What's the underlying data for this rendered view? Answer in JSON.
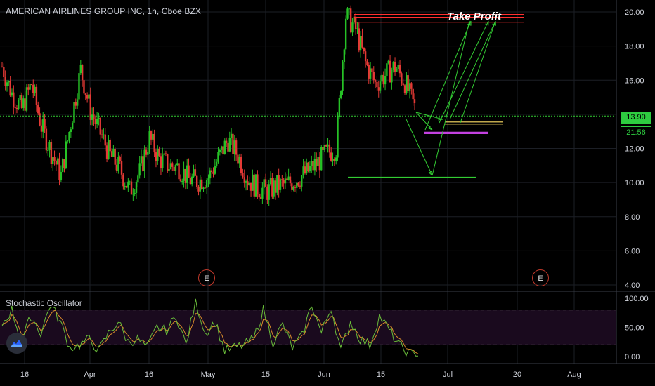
{
  "header": {
    "title": "AMERICAN AIRLINES GROUP INC, 1h, Cboe BZX"
  },
  "annotations": {
    "take_profit": "Take Profit",
    "earnings_label": "E"
  },
  "price_tags": {
    "last_price": "13.90",
    "countdown": "21:56"
  },
  "oscillator": {
    "name": "Stochastic Oscillator"
  },
  "chart_data": [
    {
      "type": "candlestick",
      "title": "AMERICAN AIRLINES GROUP INC, 1h, Cboe BZX",
      "ylim": [
        3.8,
        20.6
      ],
      "y_ticks": [
        "20.00",
        "18.00",
        "16.00",
        "14.00",
        "12.00",
        "10.00",
        "8.00",
        "6.00",
        "4.00"
      ],
      "x_ticks": [
        "16",
        "Apr",
        "16",
        "May",
        "15",
        "Jun",
        "15",
        "Jul",
        "20",
        "Aug"
      ],
      "last_price": 13.9,
      "grid": true,
      "approx_closes": [
        16.8,
        15.2,
        14.3,
        15.8,
        13.3,
        11.8,
        10.4,
        13.5,
        16.6,
        14.2,
        12.9,
        11.6,
        10.8,
        9.5,
        10.6,
        12.6,
        11.4,
        11.0,
        10.9,
        10.2,
        10.1,
        10.3,
        11.4,
        12.5,
        11.6,
        10.2,
        9.7,
        9.5,
        9.8,
        9.9,
        10.2,
        10.6,
        11.1,
        11.7,
        12.0,
        19.8,
        19.0,
        17.0,
        15.8,
        16.3,
        16.8,
        15.9,
        14.4
      ],
      "levels": [
        {
          "name": "take-profit-zone",
          "from": 19.4,
          "to": 19.85,
          "color": "#ff3030"
        },
        {
          "name": "entry-yellow",
          "value": 13.55,
          "color": "#ffe066"
        },
        {
          "name": "entry-magenta",
          "value": 12.95,
          "color": "#c341e0"
        },
        {
          "name": "support-green",
          "value": 10.3,
          "color": "#33cc33"
        },
        {
          "name": "last-price-line",
          "value": 13.9,
          "color": "#33cc33"
        }
      ]
    },
    {
      "type": "line",
      "title": "Stochastic Oscillator",
      "ylim": [
        0,
        100
      ],
      "y_ticks": [
        "100.00",
        "50.00",
        "0.00"
      ],
      "bands": [
        20,
        80
      ],
      "k_approx": [
        55,
        80,
        25,
        70,
        40,
        90,
        60,
        15,
        20,
        30,
        10,
        40,
        60,
        25,
        30,
        15,
        50,
        45,
        70,
        20,
        95,
        40,
        60,
        10,
        15,
        20,
        30,
        80,
        25,
        55,
        15,
        35,
        90,
        40,
        85,
        10,
        60,
        30,
        20,
        70,
        45,
        20,
        5,
        3
      ]
    }
  ]
}
